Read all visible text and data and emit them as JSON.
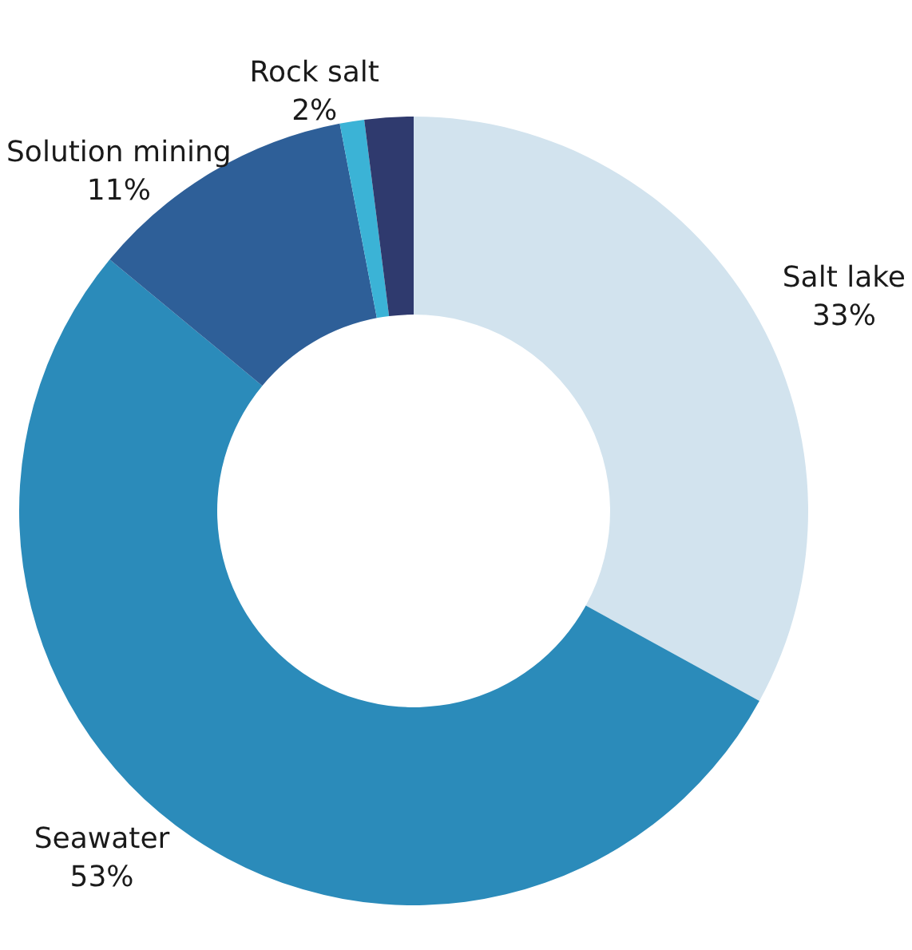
{
  "chart_data": {
    "type": "donut",
    "categories": [
      "Salt lake",
      "Seawater",
      "Solution mining",
      null,
      "Rock salt"
    ],
    "values": [
      33,
      53,
      11,
      1,
      2
    ],
    "colors": [
      "#d2e3ee",
      "#2b8bba",
      "#2e5f98",
      "#3bb3d6",
      "#2f3a6e"
    ],
    "value_labels": [
      "33%",
      "53%",
      "11%",
      null,
      "2%"
    ],
    "legend": false
  }
}
